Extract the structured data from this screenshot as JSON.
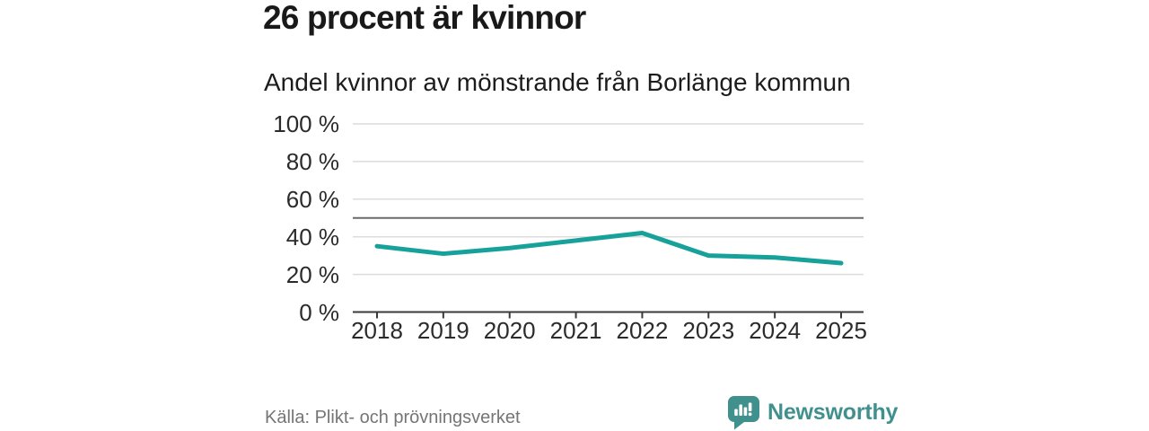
{
  "header": {
    "title": "26 procent är kvinnor",
    "subtitle": "Andel kvinnor av mönstrande från Borlänge kommun"
  },
  "chart_data": {
    "type": "line",
    "title": "26 procent är kvinnor",
    "subtitle": "Andel kvinnor av mönstrande från Borlänge kommun",
    "categories": [
      "2018",
      "2019",
      "2020",
      "2021",
      "2022",
      "2023",
      "2024",
      "2025"
    ],
    "series": [
      {
        "name": "Andel kvinnor av mönstrande från Borlänge kommun",
        "color": "#16a29a",
        "values": [
          35,
          31,
          34,
          38,
          42,
          30,
          29,
          26
        ]
      }
    ],
    "xlabel": "",
    "ylabel": "",
    "ylim": [
      0,
      100
    ],
    "yticks": [
      0,
      20,
      40,
      60,
      80,
      100
    ],
    "ytick_suffix": " %",
    "reference_line": 50,
    "grid": true,
    "legend_position": "none",
    "colors": {
      "grid": "#dcdcdc",
      "axis": "#3a3a3a",
      "reference": "#6a6a6a",
      "tick_text": "#2b2b2b"
    }
  },
  "footer": {
    "source": "Källa: Plikt- och prövningsverket",
    "brand": "Newsworthy",
    "brand_color": "#40918e",
    "brand_icon": "bar-chart-speech-bubble-icon"
  }
}
